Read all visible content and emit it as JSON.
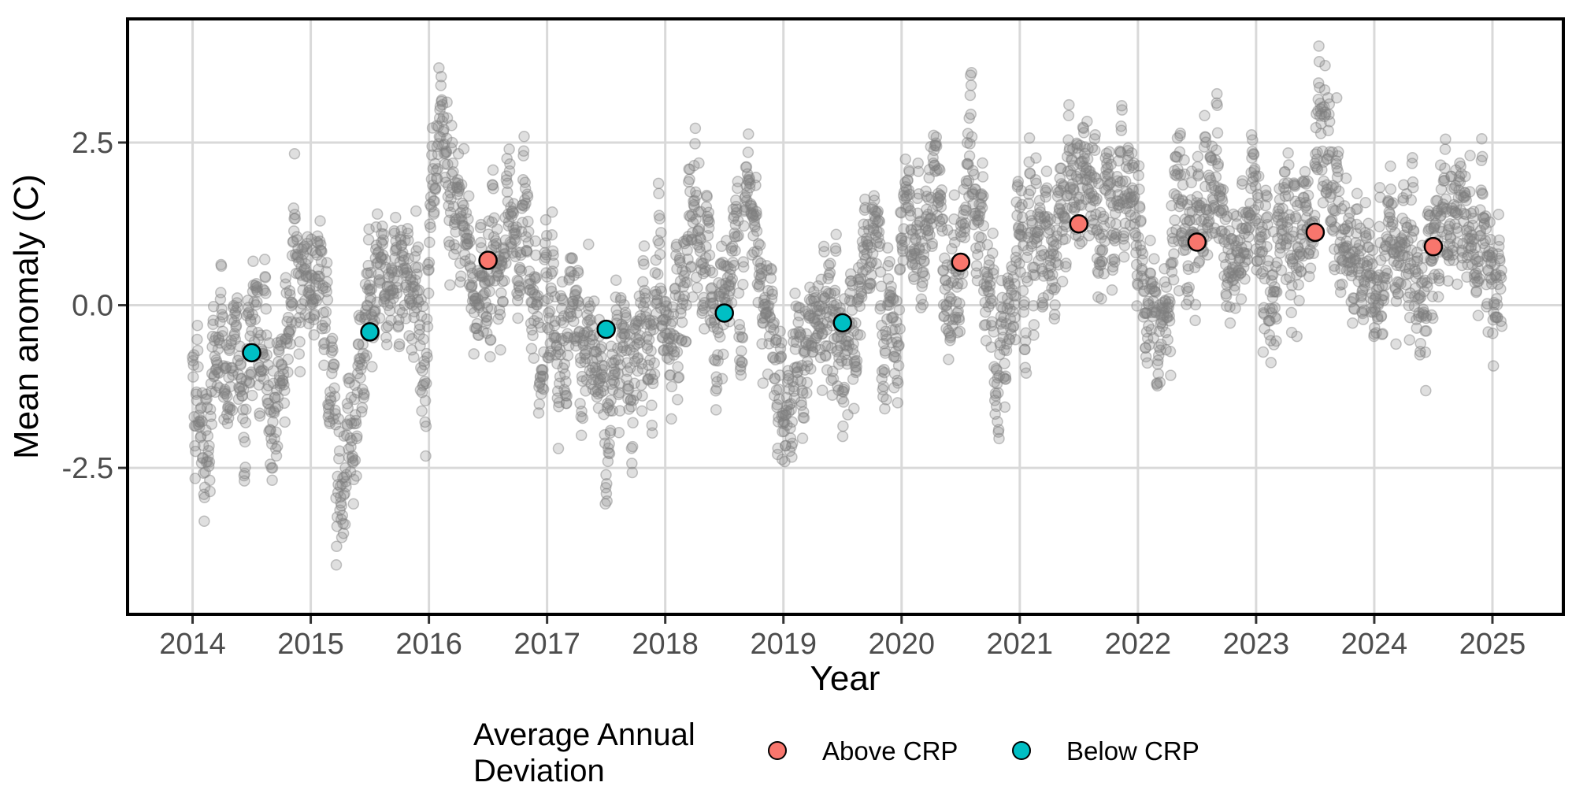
{
  "chart_data": {
    "type": "scatter",
    "xlabel": "Year",
    "ylabel": "Mean anomaly (C)",
    "xlim": [
      2013.45,
      2025.6
    ],
    "ylim": [
      -4.75,
      4.4
    ],
    "x_ticks": [
      2014,
      2015,
      2016,
      2017,
      2018,
      2019,
      2020,
      2021,
      2022,
      2023,
      2024,
      2025
    ],
    "y_ticks": [
      {
        "value": 2.5,
        "label": "2.5"
      },
      {
        "value": 0.0,
        "label": "0.0"
      },
      {
        "value": -2.5,
        "label": "-2.5"
      }
    ],
    "grid": true,
    "legend": {
      "title_lines": [
        "Average Annual",
        "Deviation"
      ],
      "position": "bottom",
      "entries": [
        {
          "label": "Above CRP",
          "color": "#F8766D"
        },
        {
          "label": "Below CRP",
          "color": "#00BFC4"
        }
      ]
    },
    "colors": {
      "above": "#F8766D",
      "below": "#00BFC4",
      "daily": "#7f7f7f",
      "grid": "#d9d9d9"
    },
    "daily_anomalies": {
      "description_free": true,
      "anchors": [
        {
          "x": 2014.0,
          "y": -0.9
        },
        {
          "x": 2014.1,
          "y": -1.8
        },
        {
          "x": 2014.25,
          "y": -0.8
        },
        {
          "x": 2014.4,
          "y": -1.3
        },
        {
          "x": 2014.5,
          "y": -0.2
        },
        {
          "x": 2014.65,
          "y": -1.6
        },
        {
          "x": 2014.85,
          "y": 0.1
        },
        {
          "x": 2015.0,
          "y": 0.8
        },
        {
          "x": 2015.15,
          "y": -0.8
        },
        {
          "x": 2015.25,
          "y": -2.3
        },
        {
          "x": 2015.4,
          "y": -1.0
        },
        {
          "x": 2015.6,
          "y": 0.0
        },
        {
          "x": 2015.8,
          "y": 0.9
        },
        {
          "x": 2015.95,
          "y": -0.5
        },
        {
          "x": 2016.05,
          "y": 1.6
        },
        {
          "x": 2016.25,
          "y": 1.2
        },
        {
          "x": 2016.4,
          "y": 0.3
        },
        {
          "x": 2016.6,
          "y": 0.8
        },
        {
          "x": 2016.85,
          "y": 1.1
        },
        {
          "x": 2017.05,
          "y": -0.2
        },
        {
          "x": 2017.3,
          "y": -0.8
        },
        {
          "x": 2017.55,
          "y": -1.3
        },
        {
          "x": 2017.8,
          "y": -0.8
        },
        {
          "x": 2017.95,
          "y": 0.5
        },
        {
          "x": 2018.1,
          "y": -1.5
        },
        {
          "x": 2018.25,
          "y": 1.0
        },
        {
          "x": 2018.45,
          "y": -0.1
        },
        {
          "x": 2018.7,
          "y": 1.4
        },
        {
          "x": 2018.85,
          "y": 0.7
        },
        {
          "x": 2019.0,
          "y": -1.4
        },
        {
          "x": 2019.3,
          "y": -0.5
        },
        {
          "x": 2019.55,
          "y": -0.4
        },
        {
          "x": 2019.75,
          "y": 0.6
        },
        {
          "x": 2019.95,
          "y": -0.8
        },
        {
          "x": 2020.1,
          "y": 0.9
        },
        {
          "x": 2020.3,
          "y": 1.2
        },
        {
          "x": 2020.45,
          "y": -0.2
        },
        {
          "x": 2020.6,
          "y": 2.5
        },
        {
          "x": 2020.8,
          "y": -0.4
        },
        {
          "x": 2021.0,
          "y": 0.1
        },
        {
          "x": 2021.2,
          "y": 0.8
        },
        {
          "x": 2021.4,
          "y": 1.7
        },
        {
          "x": 2021.65,
          "y": 2.2
        },
        {
          "x": 2021.85,
          "y": 1.9
        },
        {
          "x": 2022.0,
          "y": 0.9
        },
        {
          "x": 2022.15,
          "y": -0.7
        },
        {
          "x": 2022.35,
          "y": 0.9
        },
        {
          "x": 2022.6,
          "y": 1.9
        },
        {
          "x": 2022.8,
          "y": 0.4
        },
        {
          "x": 2023.0,
          "y": 1.3
        },
        {
          "x": 2023.25,
          "y": 0.8
        },
        {
          "x": 2023.45,
          "y": 1.2
        },
        {
          "x": 2023.6,
          "y": 2.2
        },
        {
          "x": 2023.8,
          "y": 0.8
        },
        {
          "x": 2024.0,
          "y": 0.4
        },
        {
          "x": 2024.2,
          "y": 1.4
        },
        {
          "x": 2024.4,
          "y": 0.3
        },
        {
          "x": 2024.6,
          "y": 1.6
        },
        {
          "x": 2024.85,
          "y": 1.1
        },
        {
          "x": 2025.08,
          "y": -0.6
        }
      ]
    },
    "annual_means": [
      {
        "x": 2014.5,
        "y": -0.73,
        "group": "Below CRP"
      },
      {
        "x": 2015.5,
        "y": -0.41,
        "group": "Below CRP"
      },
      {
        "x": 2016.5,
        "y": 0.69,
        "group": "Above CRP"
      },
      {
        "x": 2017.5,
        "y": -0.37,
        "group": "Below CRP"
      },
      {
        "x": 2018.5,
        "y": -0.12,
        "group": "Below CRP"
      },
      {
        "x": 2019.5,
        "y": -0.27,
        "group": "Below CRP"
      },
      {
        "x": 2020.5,
        "y": 0.66,
        "group": "Above CRP"
      },
      {
        "x": 2021.5,
        "y": 1.25,
        "group": "Above CRP"
      },
      {
        "x": 2022.5,
        "y": 0.97,
        "group": "Above CRP"
      },
      {
        "x": 2023.5,
        "y": 1.12,
        "group": "Above CRP"
      },
      {
        "x": 2024.5,
        "y": 0.9,
        "group": "Above CRP"
      }
    ]
  }
}
